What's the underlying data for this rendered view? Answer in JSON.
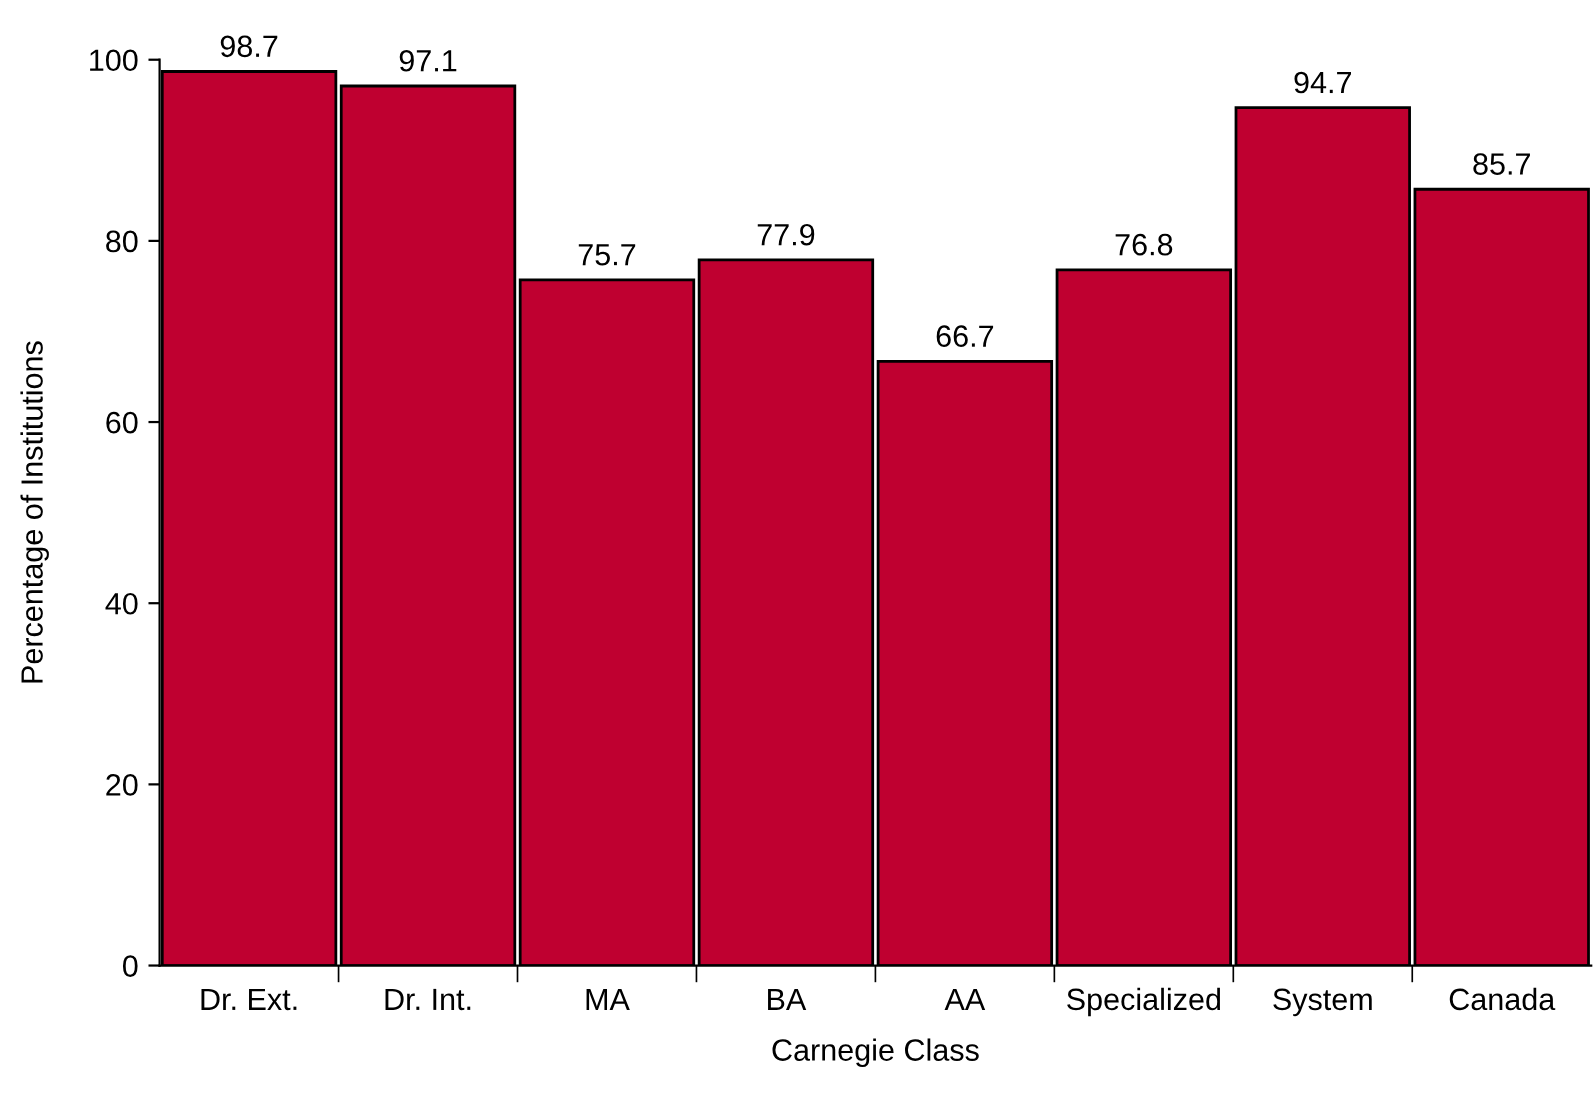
{
  "chart_data": {
    "type": "bar",
    "xlabel": "Carnegie Class",
    "ylabel": "Percentage of Institutions",
    "categories": [
      "Dr. Ext.",
      "Dr. Int.",
      "MA",
      "BA",
      "AA",
      "Specialized",
      "System",
      "Canada"
    ],
    "values": [
      98.7,
      97.1,
      75.7,
      77.9,
      66.7,
      76.8,
      94.7,
      85.7
    ],
    "color": "#bf0030",
    "ylim": [
      0,
      100
    ],
    "yticks": [
      0,
      20,
      40,
      60,
      80,
      100
    ],
    "grid": false,
    "data_labels": true
  }
}
